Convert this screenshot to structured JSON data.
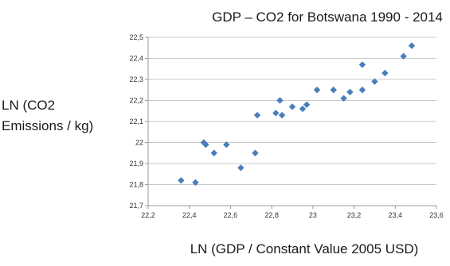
{
  "chart_data": {
    "type": "scatter",
    "title": "GDP – CO2 for Botswana 1990 - 2014",
    "xlabel": "LN (GDP / Constant Value 2005 USD)",
    "ylabel_lines": [
      "LN (CO2",
      "Emissions / kg)"
    ],
    "xlim": [
      22.2,
      23.6
    ],
    "ylim": [
      21.7,
      22.5
    ],
    "x_ticks": [
      "22,2",
      "22,4",
      "22,6",
      "22,8",
      "23",
      "23,2",
      "23,4",
      "23,6"
    ],
    "y_ticks": [
      "22,5",
      "22,4",
      "22,3",
      "22,2",
      "22,1",
      "22",
      "21,9",
      "21,8",
      "21,7"
    ],
    "grid": "horizontal",
    "marker": "diamond",
    "marker_color": "#4a7ebb",
    "series": [
      {
        "points": [
          {
            "x": 22.36,
            "y": 21.82
          },
          {
            "x": 22.43,
            "y": 21.81
          },
          {
            "x": 22.47,
            "y": 22.0
          },
          {
            "x": 22.48,
            "y": 21.99
          },
          {
            "x": 22.52,
            "y": 21.95
          },
          {
            "x": 22.58,
            "y": 21.99
          },
          {
            "x": 22.65,
            "y": 21.88
          },
          {
            "x": 22.72,
            "y": 21.95
          },
          {
            "x": 22.73,
            "y": 22.13
          },
          {
            "x": 22.82,
            "y": 22.14
          },
          {
            "x": 22.84,
            "y": 22.2
          },
          {
            "x": 22.85,
            "y": 22.13
          },
          {
            "x": 22.9,
            "y": 22.17
          },
          {
            "x": 22.95,
            "y": 22.16
          },
          {
            "x": 22.97,
            "y": 22.18
          },
          {
            "x": 23.02,
            "y": 22.25
          },
          {
            "x": 23.1,
            "y": 22.25
          },
          {
            "x": 23.15,
            "y": 22.21
          },
          {
            "x": 23.18,
            "y": 22.24
          },
          {
            "x": 23.24,
            "y": 22.25
          },
          {
            "x": 23.24,
            "y": 22.37
          },
          {
            "x": 23.3,
            "y": 22.29
          },
          {
            "x": 23.35,
            "y": 22.33
          },
          {
            "x": 23.44,
            "y": 22.41
          },
          {
            "x": 23.48,
            "y": 22.46
          }
        ]
      }
    ]
  }
}
